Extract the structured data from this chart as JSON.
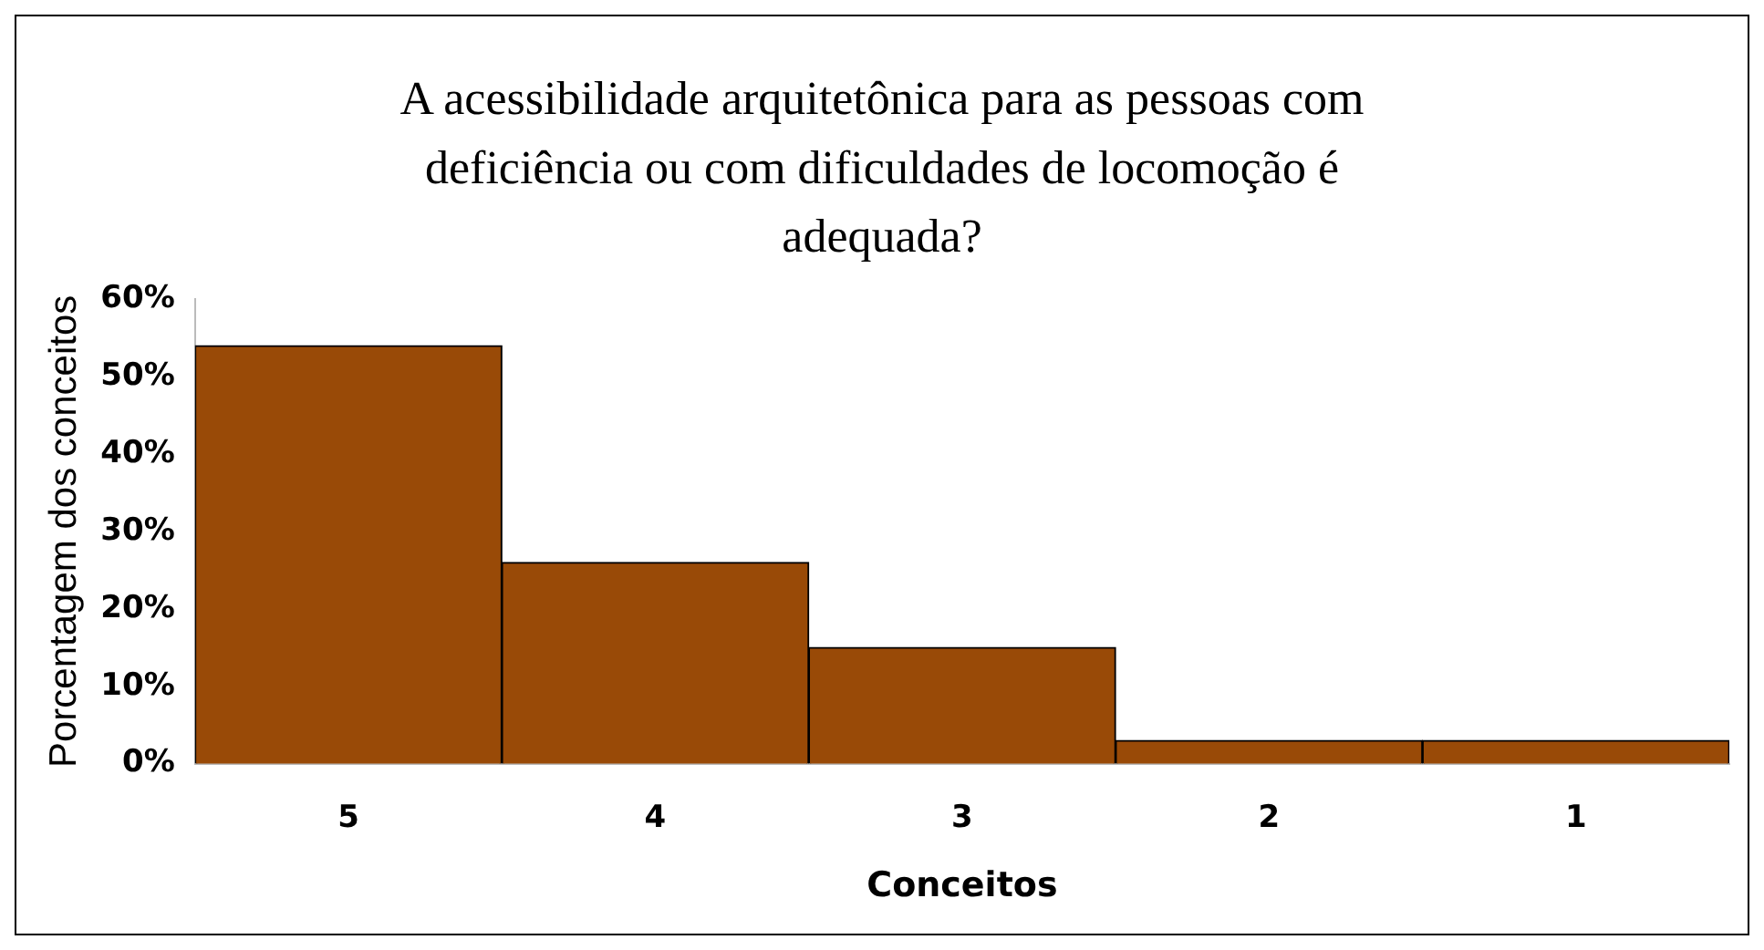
{
  "chart_data": {
    "type": "bar",
    "title": "A acessibilidade arquitetônica para as pessoas com deficiência ou com dificuldades de locomoção é adequada?",
    "xlabel": "Conceitos",
    "ylabel": "Porcentagem dos conceitos",
    "categories": [
      "5",
      "4",
      "3",
      "2",
      "1"
    ],
    "values": [
      54,
      26,
      15,
      3,
      3
    ],
    "color": "#994a07",
    "ylim": [
      0,
      60
    ],
    "yticks": [
      {
        "value": 0,
        "label": "0%"
      },
      {
        "value": 10,
        "label": "10%"
      },
      {
        "value": 20,
        "label": "20%"
      },
      {
        "value": 30,
        "label": "30%"
      },
      {
        "value": 40,
        "label": "40%"
      },
      {
        "value": 50,
        "label": "50%"
      },
      {
        "value": 60,
        "label": "60%"
      }
    ],
    "grid": false,
    "legend": false
  }
}
